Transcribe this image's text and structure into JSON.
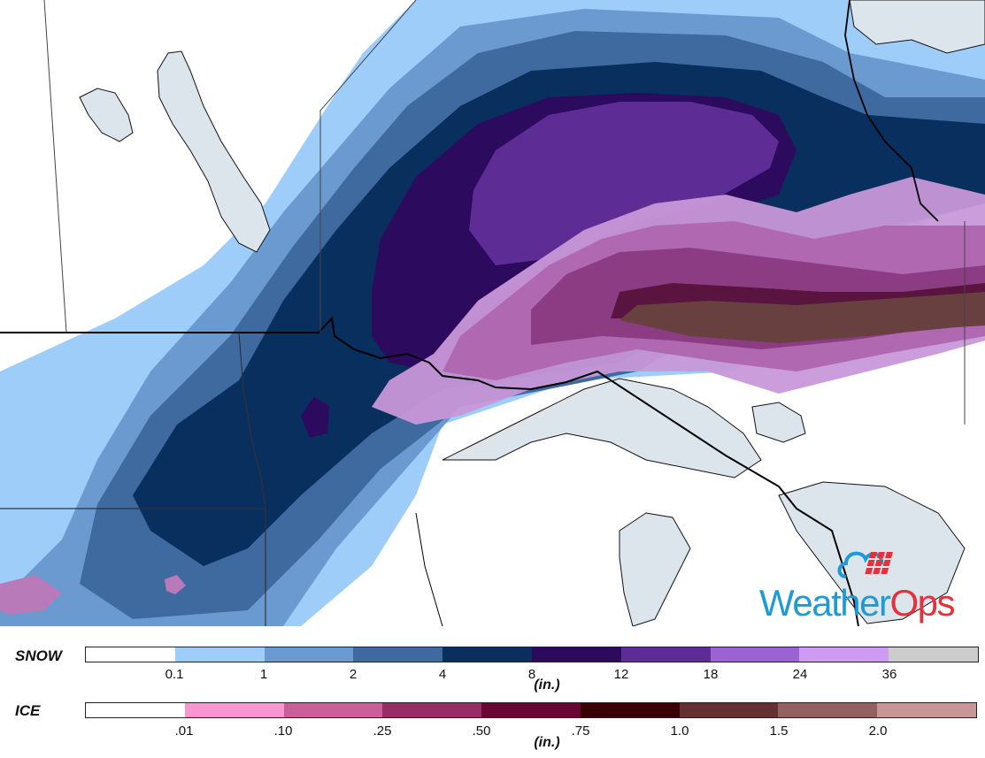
{
  "logo": {
    "text_weather": "Weather",
    "text_ops": "Ops",
    "colors": {
      "weather": "#1e9ad6",
      "ops": "#e5313b"
    }
  },
  "legend": {
    "snow": {
      "title": "SNOW",
      "unit": "(in.)",
      "colors": [
        "#ffffff",
        "#9ecdfa",
        "#6b9ad0",
        "#3e6aa0",
        "#082f5e",
        "#2c0a5e",
        "#5e2c95",
        "#9a62d2",
        "#cf9af2",
        "#cccccc"
      ],
      "ticks": [
        "0.1",
        "1",
        "2",
        "4",
        "8",
        "12",
        "18",
        "24",
        "36"
      ]
    },
    "ice": {
      "title": "ICE",
      "unit": "(in.)",
      "colors": [
        "#ffffff",
        "#f896d0",
        "#c85f96",
        "#962e66",
        "#6a0634",
        "#380004",
        "#663032",
        "#946060",
        "#c89696"
      ],
      "ticks": [
        ".01",
        ".10",
        ".25",
        ".50",
        ".75",
        "1.0",
        "1.5",
        "2.0"
      ]
    }
  }
}
